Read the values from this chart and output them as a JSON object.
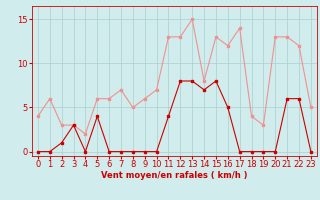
{
  "x": [
    0,
    1,
    2,
    3,
    4,
    5,
    6,
    7,
    8,
    9,
    10,
    11,
    12,
    13,
    14,
    15,
    16,
    17,
    18,
    19,
    20,
    21,
    22,
    23
  ],
  "y_rafales": [
    4,
    6,
    3,
    3,
    2,
    6,
    6,
    7,
    5,
    6,
    7,
    13,
    13,
    15,
    8,
    13,
    12,
    14,
    4,
    3,
    13,
    13,
    12,
    5
  ],
  "y_moyen": [
    0,
    0,
    1,
    3,
    0,
    4,
    0,
    0,
    0,
    0,
    0,
    4,
    8,
    8,
    7,
    8,
    5,
    0,
    0,
    0,
    0,
    6,
    6,
    0
  ],
  "color_rafales": "#f09090",
  "color_moyen": "#cc0000",
  "bg_color": "#d0ecec",
  "grid_color": "#aacece",
  "xlabel": "Vent moyen/en rafales ( km/h )",
  "xlabel_color": "#cc0000",
  "xlabel_fontsize": 6.0,
  "yticks": [
    0,
    5,
    10,
    15
  ],
  "ylim": [
    -0.5,
    16.5
  ],
  "xlim": [
    -0.5,
    23.5
  ],
  "tick_fontsize": 6.0,
  "marker": "s",
  "marker_size": 1.8,
  "linewidth": 0.8
}
